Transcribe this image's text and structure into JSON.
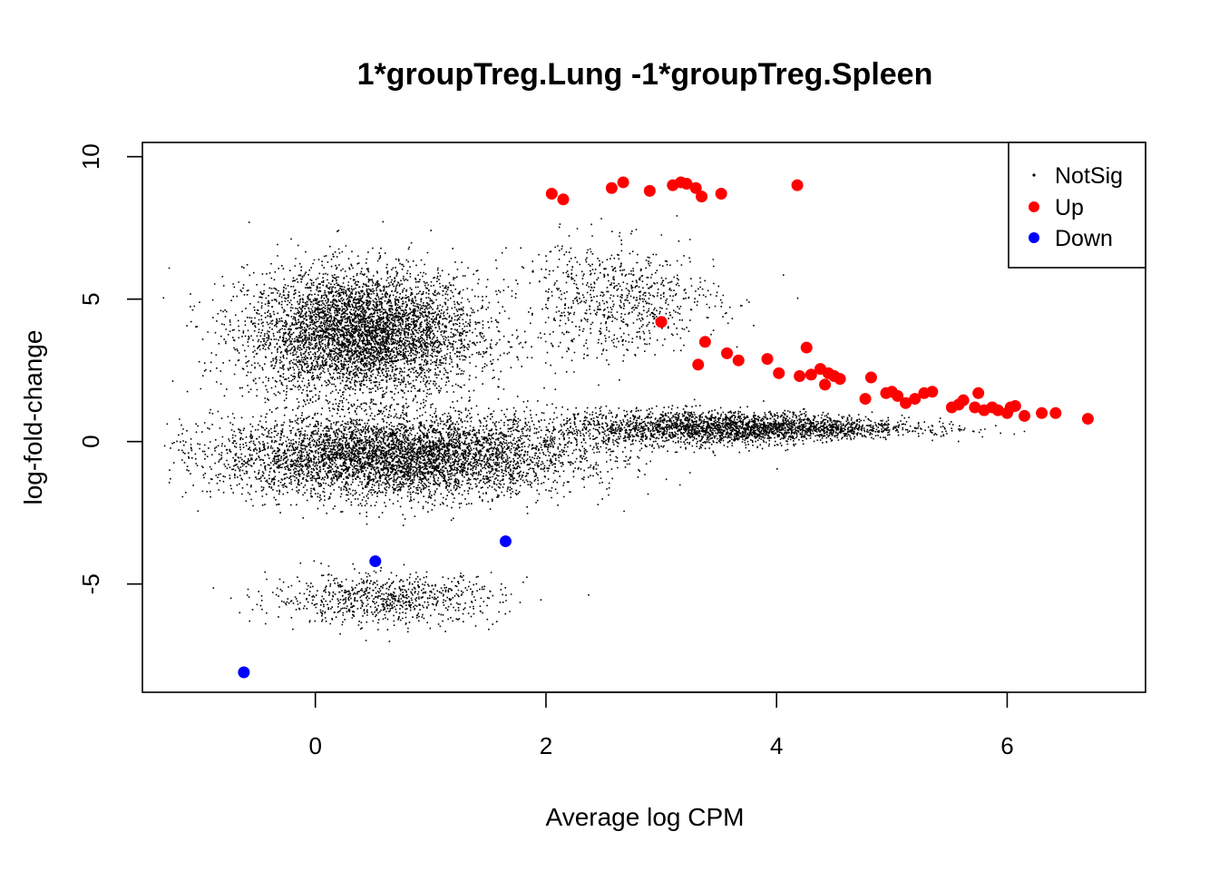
{
  "chart_data": {
    "type": "scatter",
    "title": "1*groupTreg.Lung -1*groupTreg.Spleen",
    "xlabel": "Average log CPM",
    "ylabel": "log-fold-change",
    "xlim": [
      -1.5,
      7.2
    ],
    "ylim": [
      -8.8,
      10.5
    ],
    "x_ticks": [
      0,
      2,
      4,
      6
    ],
    "y_ticks": [
      -5,
      0,
      5,
      10
    ],
    "grid": false,
    "legend_position": "top-right",
    "series": [
      {
        "name": "NotSig",
        "color": "#000000",
        "marker": "small-dot",
        "point_count_estimate": 50000,
        "clusters": [
          {
            "x_center": 0.4,
            "x_spread": 0.9,
            "y_center": 3.8,
            "y_spread": 2.0,
            "share": 0.32
          },
          {
            "x_center": 0.7,
            "x_spread": 1.4,
            "y_center": -0.5,
            "y_spread": 1.3,
            "share": 0.4
          },
          {
            "x_center": 3.6,
            "x_spread": 1.4,
            "y_center": 0.5,
            "y_spread": 0.7,
            "share": 0.18
          },
          {
            "x_center": 0.6,
            "x_spread": 0.9,
            "y_center": -5.5,
            "y_spread": 0.8,
            "share": 0.05
          },
          {
            "x_center": 2.6,
            "x_spread": 0.8,
            "y_center": 5.0,
            "y_spread": 2.0,
            "share": 0.05
          }
        ]
      },
      {
        "name": "Up",
        "color": "#ff0000",
        "marker": "filled-circle",
        "x": [
          2.05,
          2.15,
          2.57,
          2.67,
          2.9,
          3.1,
          3.17,
          3.22,
          3.3,
          3.35,
          3.52,
          4.18,
          3.0,
          3.38,
          3.32,
          3.57,
          3.67,
          3.92,
          4.02,
          4.2,
          4.26,
          4.3,
          4.38,
          4.42,
          4.45,
          4.5,
          4.55,
          4.77,
          4.82,
          4.95,
          5.0,
          5.05,
          5.12,
          5.2,
          5.28,
          5.35,
          5.52,
          5.58,
          5.62,
          5.72,
          5.75,
          5.8,
          5.87,
          5.92,
          6.0,
          6.03,
          6.07,
          6.15,
          6.3,
          6.42,
          6.7
        ],
        "y": [
          8.7,
          8.5,
          8.9,
          9.1,
          8.8,
          9.0,
          9.1,
          9.05,
          8.9,
          8.6,
          8.7,
          9.0,
          4.2,
          3.5,
          2.7,
          3.1,
          2.85,
          2.9,
          2.4,
          2.3,
          3.3,
          2.35,
          2.55,
          2.0,
          2.4,
          2.3,
          2.2,
          1.5,
          2.25,
          1.7,
          1.75,
          1.6,
          1.35,
          1.5,
          1.7,
          1.75,
          1.2,
          1.3,
          1.45,
          1.2,
          1.7,
          1.1,
          1.2,
          1.1,
          1.0,
          1.2,
          1.25,
          0.9,
          1.0,
          1.0,
          0.8
        ]
      },
      {
        "name": "Down",
        "color": "#0000ff",
        "marker": "filled-circle",
        "x": [
          -0.62,
          0.52,
          1.65
        ],
        "y": [
          -8.1,
          -4.2,
          -3.5
        ]
      }
    ]
  }
}
